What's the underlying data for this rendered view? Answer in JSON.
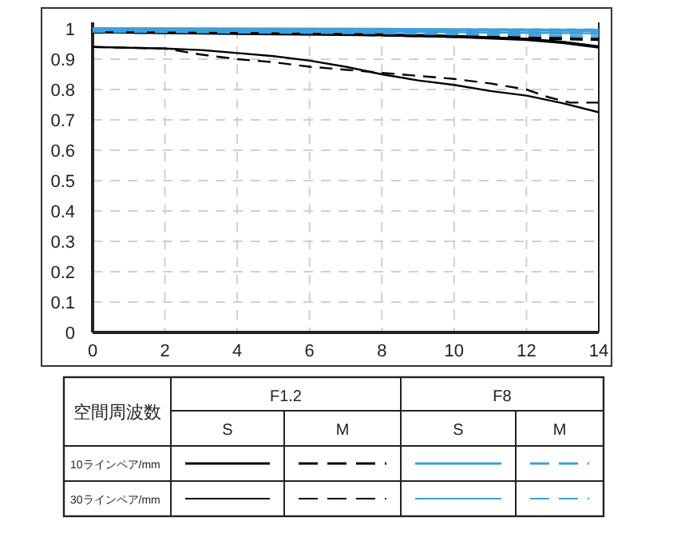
{
  "chart_data": {
    "type": "line",
    "legend_title": "空間周波数",
    "annotations": [
      "F1.2",
      "F8",
      "S",
      "M",
      "10ラインペア/mm",
      "30ラインペア/mm"
    ],
    "xlim": [
      0,
      14
    ],
    "ylim": [
      0,
      1
    ],
    "xticks": [
      0,
      2,
      4,
      6,
      8,
      10,
      12,
      14
    ],
    "yticks": [
      0,
      0.1,
      0.2,
      0.3,
      0.4,
      0.5,
      0.6,
      0.7,
      0.8,
      0.9,
      1
    ],
    "grid": true,
    "series": [
      {
        "color": "#000000",
        "line_style": "solid",
        "x": [
          0,
          4,
          8,
          10,
          12,
          13,
          14
        ],
        "values": [
          0.99,
          0.985,
          0.98,
          0.975,
          0.965,
          0.955,
          0.94
        ]
      },
      {
        "color": "#000000",
        "line_style": "dashed",
        "x": [
          0,
          6,
          10,
          12,
          14
        ],
        "values": [
          0.99,
          0.985,
          0.975,
          0.97,
          0.965
        ]
      },
      {
        "color": "#3ca0dc",
        "line_style": "solid",
        "x": [
          0,
          8,
          14
        ],
        "values": [
          1.0,
          0.998,
          0.995
        ]
      },
      {
        "color": "#3ca0dc",
        "line_style": "dashed",
        "x": [
          0,
          8,
          14
        ],
        "values": [
          0.995,
          0.99,
          0.985
        ]
      },
      {
        "color": "#000000",
        "line_style": "solid",
        "x": [
          0,
          2,
          3,
          4,
          5,
          6,
          7,
          8,
          9,
          10,
          11,
          12,
          13,
          14
        ],
        "values": [
          0.94,
          0.935,
          0.93,
          0.92,
          0.91,
          0.895,
          0.875,
          0.85,
          0.83,
          0.815,
          0.795,
          0.78,
          0.755,
          0.725
        ]
      },
      {
        "color": "#000000",
        "line_style": "dashed",
        "x": [
          0,
          2,
          3,
          4,
          5,
          6,
          7,
          8,
          9,
          10,
          11,
          12,
          12.6,
          13.2,
          14
        ],
        "values": [
          0.94,
          0.935,
          0.915,
          0.9,
          0.89,
          0.875,
          0.865,
          0.855,
          0.845,
          0.835,
          0.82,
          0.8,
          0.775,
          0.757,
          0.757
        ]
      },
      {
        "color": "#3ca0dc",
        "line_style": "solid",
        "x": [
          0,
          8,
          14
        ],
        "values": [
          0.995,
          0.99,
          0.985
        ]
      },
      {
        "color": "#3ca0dc",
        "line_style": "dashed",
        "x": [
          0,
          8,
          14
        ],
        "values": [
          0.99,
          0.985,
          0.975
        ]
      }
    ]
  }
}
